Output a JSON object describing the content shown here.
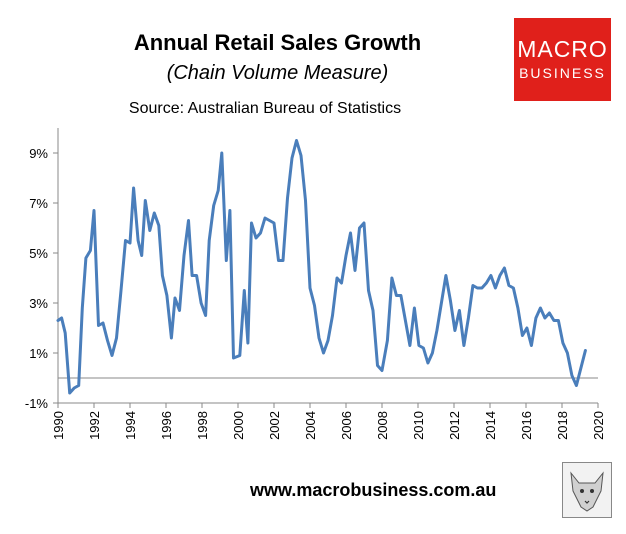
{
  "chart_data": {
    "type": "line",
    "title": "Annual Retail Sales Growth",
    "subtitle": "(Chain Volume Measure)",
    "source": "Source: Australian Bureau of Statistics",
    "ylim": [
      -1,
      10
    ],
    "yticks": [
      "9%",
      "7%",
      "5%",
      "3%",
      "1%",
      "-1%"
    ],
    "ytick_values": [
      9,
      7,
      5,
      3,
      1,
      -1
    ],
    "xlim": [
      1990,
      2020
    ],
    "xticks": [
      "1990",
      "1992",
      "1994",
      "1996",
      "1998",
      "2000",
      "2002",
      "2004",
      "2006",
      "2008",
      "2010",
      "2012",
      "2014",
      "2016",
      "2018",
      "2020"
    ],
    "xtick_values": [
      1990,
      1992,
      1994,
      1996,
      1998,
      2000,
      2002,
      2004,
      2006,
      2008,
      2010,
      2012,
      2014,
      2016,
      2018,
      2020
    ],
    "grid": false,
    "line_color": "#4a7ebb",
    "series": [
      {
        "values": [
          [
            1990.0,
            2.3
          ],
          [
            1990.2,
            2.4
          ],
          [
            1990.4,
            1.8
          ],
          [
            1990.65,
            -0.6
          ],
          [
            1990.9,
            -0.4
          ],
          [
            1991.15,
            -0.3
          ],
          [
            1991.35,
            2.8
          ],
          [
            1991.55,
            4.8
          ],
          [
            1991.8,
            5.1
          ],
          [
            1992.0,
            6.7
          ],
          [
            1992.25,
            2.1
          ],
          [
            1992.5,
            2.2
          ],
          [
            1992.75,
            1.5
          ],
          [
            1993.0,
            0.9
          ],
          [
            1993.25,
            1.6
          ],
          [
            1993.5,
            3.5
          ],
          [
            1993.75,
            5.5
          ],
          [
            1994.0,
            5.4
          ],
          [
            1994.2,
            7.6
          ],
          [
            1994.45,
            5.5
          ],
          [
            1994.65,
            4.9
          ],
          [
            1994.85,
            7.1
          ],
          [
            1995.1,
            5.9
          ],
          [
            1995.35,
            6.6
          ],
          [
            1995.6,
            6.1
          ],
          [
            1995.8,
            4.1
          ],
          [
            1996.05,
            3.3
          ],
          [
            1996.3,
            1.6
          ],
          [
            1996.5,
            3.2
          ],
          [
            1996.75,
            2.7
          ],
          [
            1997.0,
            4.9
          ],
          [
            1997.25,
            6.3
          ],
          [
            1997.45,
            4.1
          ],
          [
            1997.7,
            4.1
          ],
          [
            1997.95,
            3.0
          ],
          [
            1998.2,
            2.5
          ],
          [
            1998.4,
            5.5
          ],
          [
            1998.65,
            6.9
          ],
          [
            1998.9,
            7.5
          ],
          [
            1999.1,
            9.0
          ],
          [
            1999.35,
            4.7
          ],
          [
            1999.55,
            6.7
          ],
          [
            1999.75,
            0.8
          ],
          [
            2000.1,
            0.9
          ],
          [
            2000.35,
            3.5
          ],
          [
            2000.55,
            1.4
          ],
          [
            2000.75,
            6.2
          ],
          [
            2001.0,
            5.6
          ],
          [
            2001.25,
            5.8
          ],
          [
            2001.5,
            6.4
          ],
          [
            2001.75,
            6.3
          ],
          [
            2002.0,
            6.2
          ],
          [
            2002.25,
            4.7
          ],
          [
            2002.5,
            4.7
          ],
          [
            2002.75,
            7.2
          ],
          [
            2003.0,
            8.8
          ],
          [
            2003.25,
            9.5
          ],
          [
            2003.5,
            8.9
          ],
          [
            2003.75,
            7.1
          ],
          [
            2004.0,
            3.6
          ],
          [
            2004.25,
            2.9
          ],
          [
            2004.5,
            1.6
          ],
          [
            2004.75,
            1.0
          ],
          [
            2005.0,
            1.5
          ],
          [
            2005.25,
            2.5
          ],
          [
            2005.5,
            4.0
          ],
          [
            2005.75,
            3.8
          ],
          [
            2006.0,
            4.9
          ],
          [
            2006.25,
            5.8
          ],
          [
            2006.5,
            4.3
          ],
          [
            2006.75,
            6.0
          ],
          [
            2007.0,
            6.2
          ],
          [
            2007.25,
            3.5
          ],
          [
            2007.5,
            2.7
          ],
          [
            2007.75,
            0.5
          ],
          [
            2008.0,
            0.3
          ],
          [
            2008.3,
            1.5
          ],
          [
            2008.55,
            4.0
          ],
          [
            2008.8,
            3.3
          ],
          [
            2009.05,
            3.3
          ],
          [
            2009.3,
            2.3
          ],
          [
            2009.55,
            1.3
          ],
          [
            2009.8,
            2.8
          ],
          [
            2010.05,
            1.3
          ],
          [
            2010.3,
            1.2
          ],
          [
            2010.55,
            0.6
          ],
          [
            2010.8,
            1.0
          ],
          [
            2011.05,
            1.9
          ],
          [
            2011.3,
            3.0
          ],
          [
            2011.55,
            4.1
          ],
          [
            2011.8,
            3.1
          ],
          [
            2012.05,
            1.9
          ],
          [
            2012.3,
            2.7
          ],
          [
            2012.55,
            1.3
          ],
          [
            2012.8,
            2.4
          ],
          [
            2013.05,
            3.7
          ],
          [
            2013.3,
            3.6
          ],
          [
            2013.55,
            3.6
          ],
          [
            2013.8,
            3.8
          ],
          [
            2014.05,
            4.1
          ],
          [
            2014.3,
            3.6
          ],
          [
            2014.55,
            4.1
          ],
          [
            2014.8,
            4.4
          ],
          [
            2015.05,
            3.7
          ],
          [
            2015.3,
            3.6
          ],
          [
            2015.55,
            2.8
          ],
          [
            2015.8,
            1.7
          ],
          [
            2016.05,
            2.0
          ],
          [
            2016.3,
            1.3
          ],
          [
            2016.55,
            2.4
          ],
          [
            2016.8,
            2.8
          ],
          [
            2017.05,
            2.4
          ],
          [
            2017.3,
            2.6
          ],
          [
            2017.55,
            2.3
          ],
          [
            2017.8,
            2.3
          ],
          [
            2018.05,
            1.4
          ],
          [
            2018.3,
            1.0
          ],
          [
            2018.55,
            0.1
          ],
          [
            2018.8,
            -0.3
          ],
          [
            2019.05,
            0.4
          ],
          [
            2019.3,
            1.1
          ]
        ]
      }
    ]
  },
  "logo": {
    "line1": "MACRO",
    "line2": "BUSINESS"
  },
  "website": "www.macrobusiness.com.au"
}
